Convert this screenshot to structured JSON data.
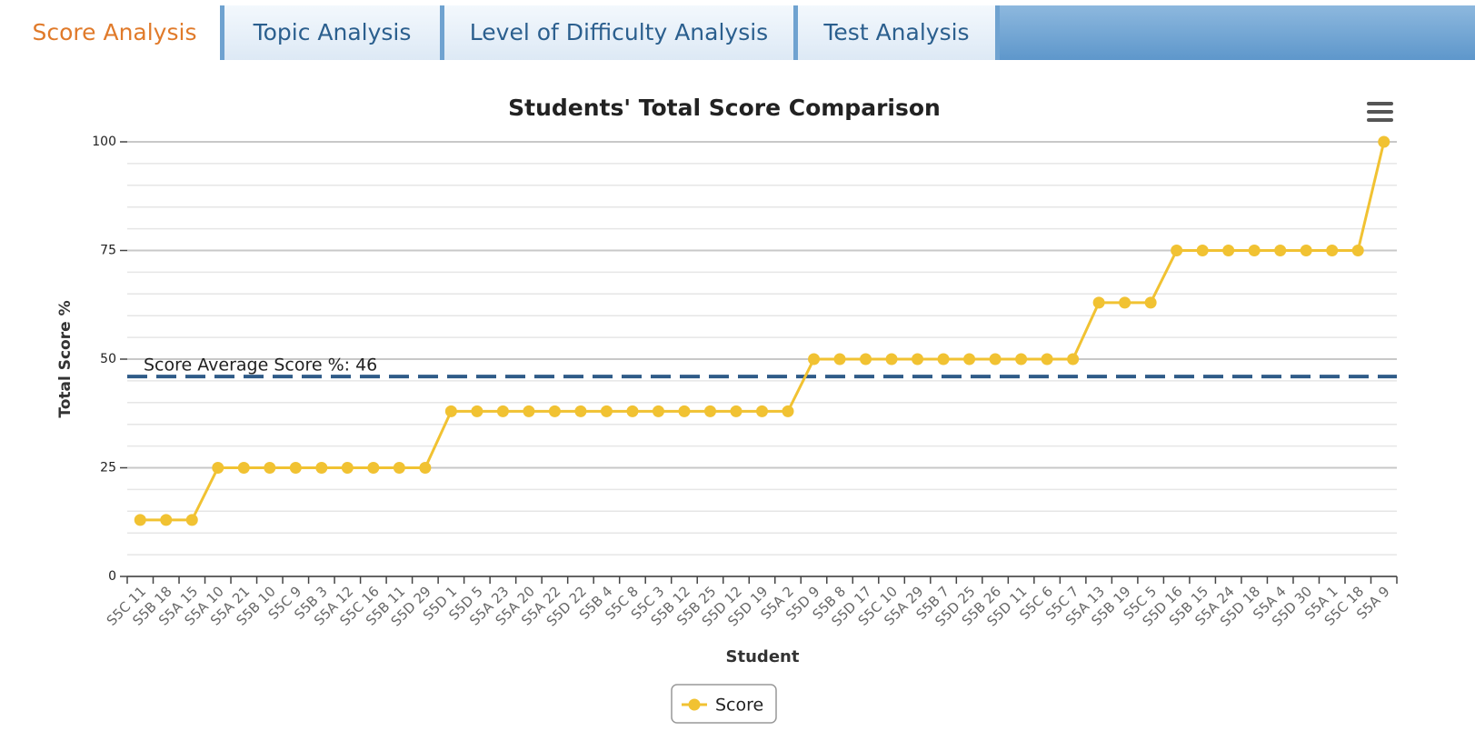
{
  "tabs": [
    "Score Analysis",
    "Topic Analysis",
    "Level of Difficulty Analysis",
    "Test Analysis"
  ],
  "active_tab": 0,
  "chart_data": {
    "type": "line",
    "title": "Students' Total Score Comparison",
    "x_label": "Student",
    "y_label": "Total Score %",
    "categories": [
      "S5C 11",
      "S5B 18",
      "S5A 15",
      "S5A 10",
      "S5A 21",
      "S5B 10",
      "S5C 9",
      "S5B 3",
      "S5A 12",
      "S5C 16",
      "S5B 11",
      "S5D 29",
      "S5D 1",
      "S5D 5",
      "S5A 23",
      "S5A 20",
      "S5A 22",
      "S5D 22",
      "S5B 4",
      "S5C 8",
      "S5C 3",
      "S5B 12",
      "S5B 25",
      "S5D 12",
      "S5D 19",
      "S5A 2",
      "S5D 9",
      "S5B 8",
      "S5D 17",
      "S5C 10",
      "S5A 29",
      "S5B 7",
      "S5D 25",
      "S5B 26",
      "S5D 11",
      "S5C 6",
      "S5C 7",
      "S5A 13",
      "S5B 19",
      "S5C 5",
      "S5D 16",
      "S5B 15",
      "S5A 24",
      "S5D 18",
      "S5A 4",
      "S5D 30",
      "S5A 1",
      "S5C 18",
      "S5A 9"
    ],
    "series": [
      {
        "name": "Score",
        "color": "#f1c232",
        "values": [
          13,
          13,
          13,
          25,
          25,
          25,
          25,
          25,
          25,
          25,
          25,
          25,
          38,
          38,
          38,
          38,
          38,
          38,
          38,
          38,
          38,
          38,
          38,
          38,
          38,
          38,
          50,
          50,
          50,
          50,
          50,
          50,
          50,
          50,
          50,
          50,
          50,
          63,
          63,
          63,
          75,
          75,
          75,
          75,
          75,
          75,
          75,
          75,
          100
        ]
      }
    ],
    "ylim": [
      0,
      100
    ],
    "yticks": [
      0,
      25,
      50,
      75,
      100
    ],
    "minor_yticks": [
      5,
      10,
      15,
      20,
      30,
      35,
      40,
      45,
      55,
      60,
      65,
      70,
      80,
      85,
      90,
      95
    ],
    "grid": true,
    "plot_lines": [
      {
        "value": 46,
        "label": "Score Average Score %: 46",
        "color": "#2f5b88"
      }
    ],
    "legend": "bottom"
  }
}
